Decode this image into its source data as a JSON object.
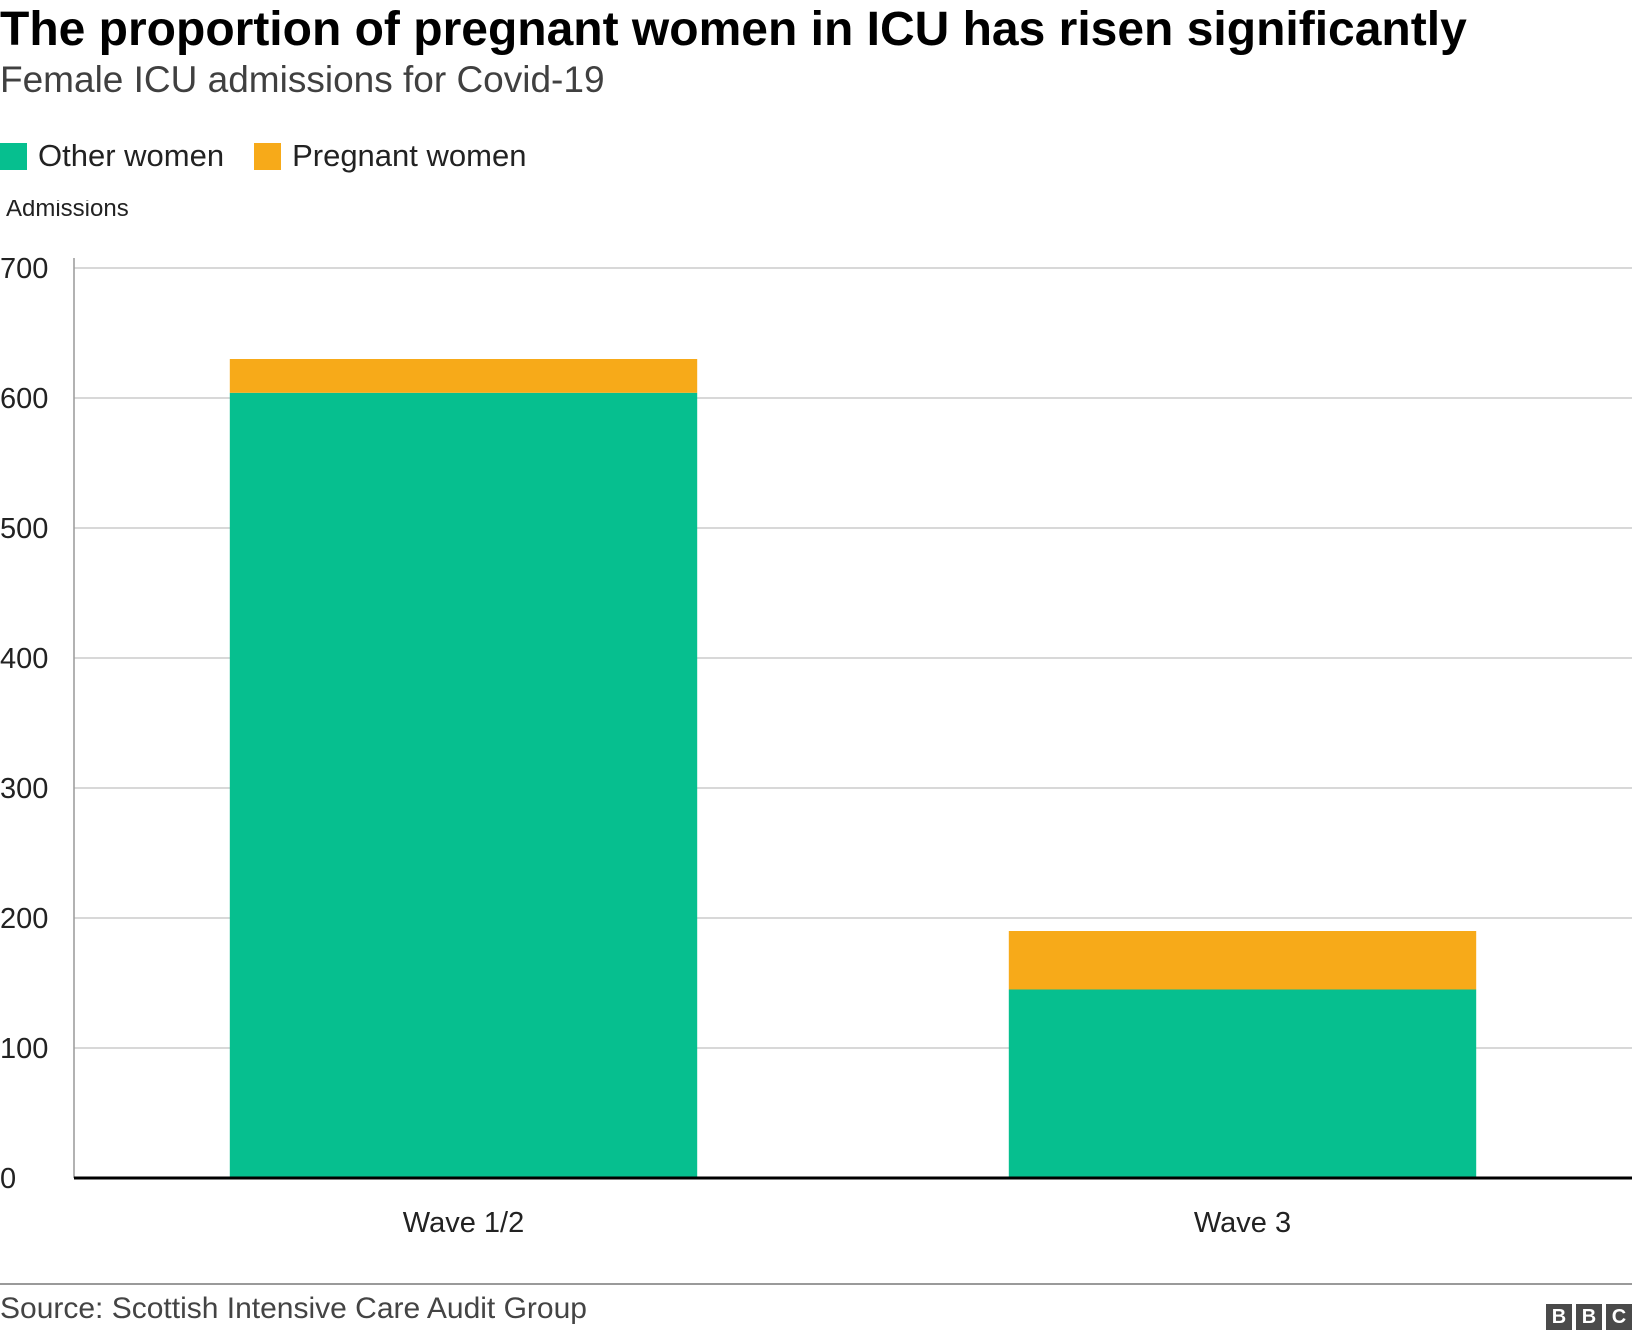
{
  "header": {
    "title": "The proportion of pregnant women in ICU has risen significantly",
    "subtitle": "Female ICU admissions for Covid-19"
  },
  "legend": {
    "items": [
      {
        "label": "Other women",
        "color": "#06bf8f"
      },
      {
        "label": "Pregnant women",
        "color": "#f7aa19"
      }
    ]
  },
  "chart_data": {
    "type": "bar",
    "stacked": true,
    "categories": [
      "Wave 1/2",
      "Wave 3"
    ],
    "series": [
      {
        "name": "Other women",
        "values": [
          604,
          145
        ],
        "color": "#06bf8f"
      },
      {
        "name": "Pregnant women",
        "values": [
          26,
          45
        ],
        "color": "#f7aa19"
      }
    ],
    "ylabel": "Admissions",
    "ylim": [
      0,
      700
    ],
    "yticks": [
      0,
      100,
      200,
      300,
      400,
      500,
      600,
      700
    ],
    "grid": true,
    "legend_position": "top-left"
  },
  "footer": {
    "source": "Source: Scottish Intensive Care Audit Group",
    "logo_letters": [
      "B",
      "B",
      "C"
    ]
  }
}
